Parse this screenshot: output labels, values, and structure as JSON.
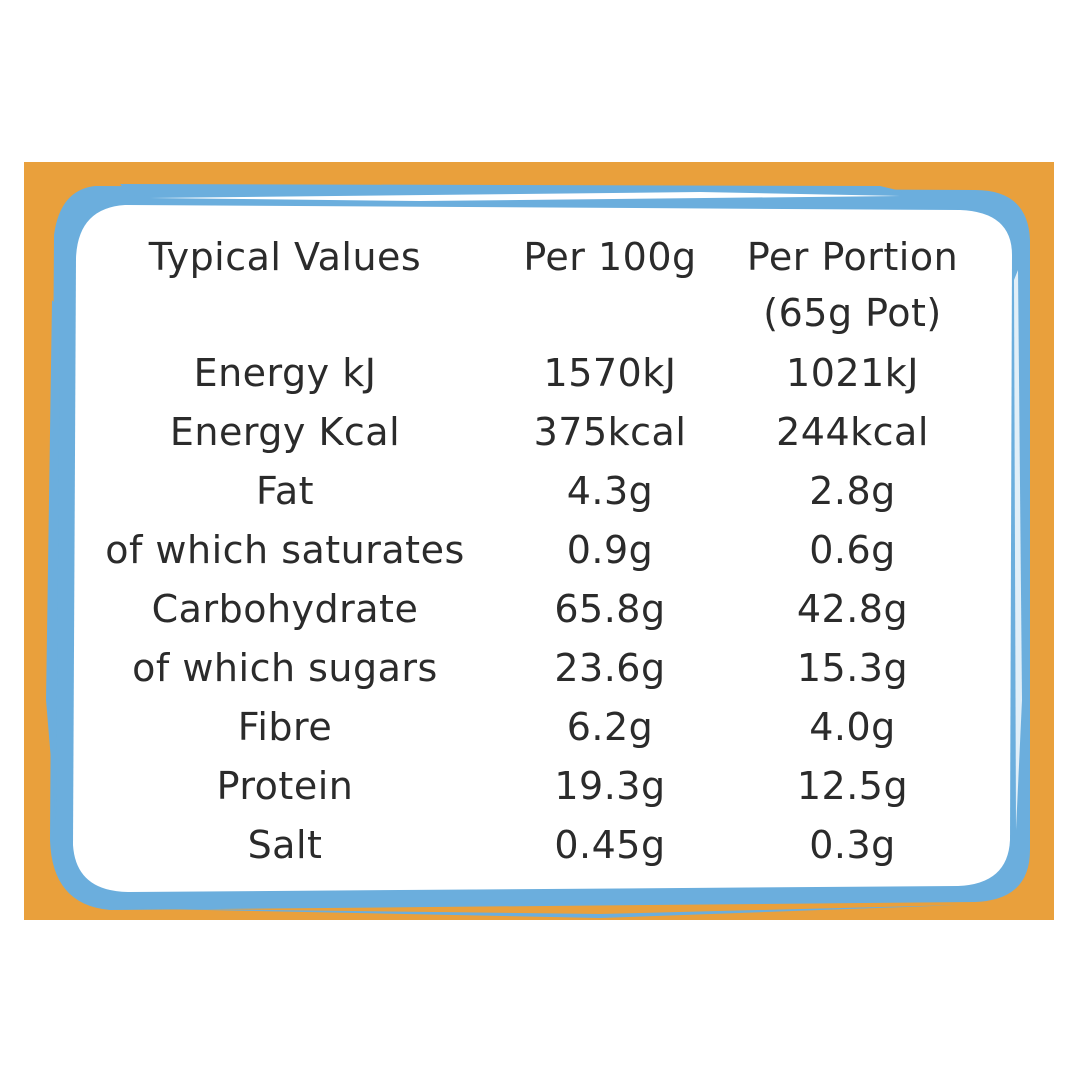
{
  "colors": {
    "background": "#ffffff",
    "panel_orange": "#E9A03C",
    "frame_blue": "#6BAEDD",
    "card_white": "#ffffff",
    "text": "#2b2b2b"
  },
  "header": {
    "label": "Typical Values",
    "per_100g": "Per 100g",
    "per_portion_line1": "Per Portion",
    "per_portion_line2": "(65g Pot)"
  },
  "rows": [
    {
      "label": "Energy kJ",
      "per_100g": "1570kJ",
      "per_portion": "1021kJ"
    },
    {
      "label": "Energy Kcal",
      "per_100g": "375kcal",
      "per_portion": "244kcal"
    },
    {
      "label": "Fat",
      "per_100g": "4.3g",
      "per_portion": "2.8g"
    },
    {
      "label": "of which saturates",
      "per_100g": "0.9g",
      "per_portion": "0.6g"
    },
    {
      "label": "Carbohydrate",
      "per_100g": "65.8g",
      "per_portion": "42.8g"
    },
    {
      "label": "of which sugars",
      "per_100g": "23.6g",
      "per_portion": "15.3g"
    },
    {
      "label": "Fibre",
      "per_100g": "6.2g",
      "per_portion": "4.0g"
    },
    {
      "label": "Protein",
      "per_100g": "19.3g",
      "per_portion": "12.5g"
    },
    {
      "label": "Salt",
      "per_100g": "0.45g",
      "per_portion": "0.3g"
    }
  ]
}
